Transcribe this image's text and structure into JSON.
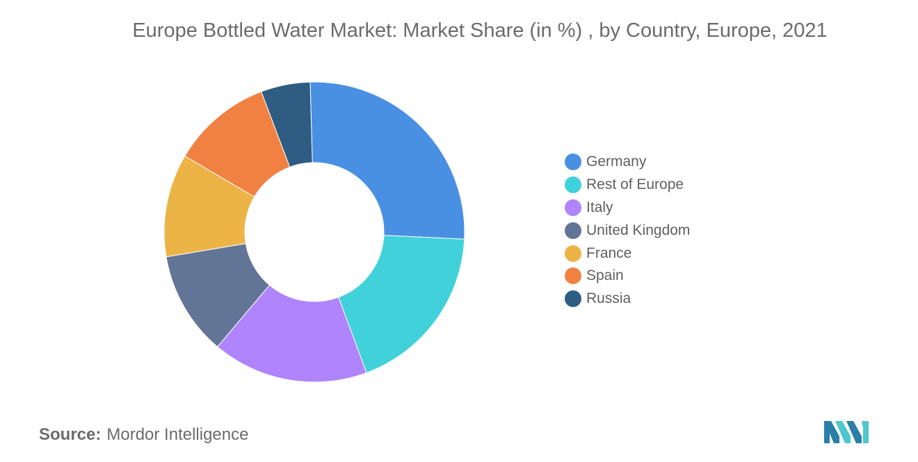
{
  "chart_data": {
    "type": "pie",
    "donut": true,
    "title": "Europe Bottled Water Market: Market Share (in %) , by Country, Europe, 2021",
    "categories": [
      "Germany",
      "Rest of Europe",
      "Italy",
      "United Kingdom",
      "France",
      "Spain",
      "Russia"
    ],
    "values": [
      26.2,
      18.6,
      16.8,
      11.2,
      11.1,
      10.8,
      5.3
    ],
    "unit": "%",
    "colors": [
      "#4a90e2",
      "#40d1db",
      "#b084fc",
      "#637596",
      "#ecb447",
      "#f18143",
      "#2e5c82"
    ],
    "legend_position": "right"
  },
  "source": {
    "label": "Source:",
    "text": "Mordor Intelligence"
  },
  "logo": {
    "icon": "mordor-intelligence-logo",
    "colors": [
      "#2a7fa7",
      "#4fc7cf"
    ]
  }
}
